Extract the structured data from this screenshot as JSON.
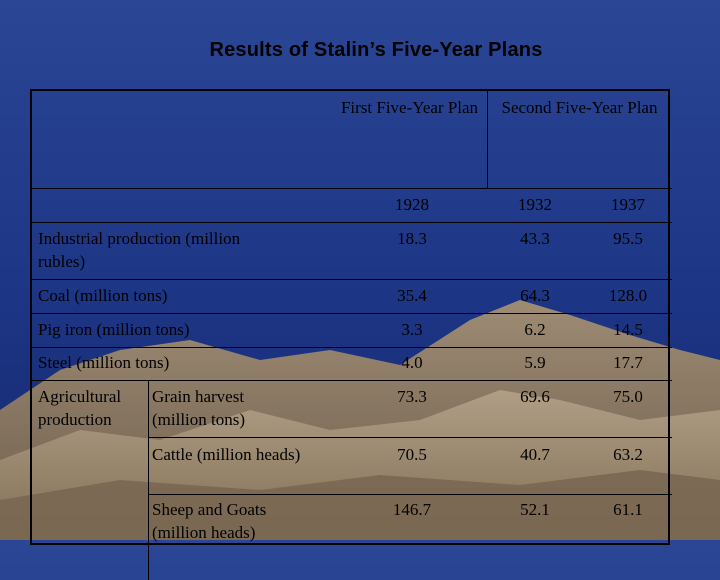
{
  "title": "Results of Stalin’s Five-Year Plans",
  "headers": {
    "first_plan": "First Five-Year Plan",
    "second_plan": "Second Five-Year Plan",
    "years": [
      "1928",
      "1932",
      "1937"
    ]
  },
  "rows": [
    {
      "label": "Industrial production (million rubles)",
      "values": [
        "18.3",
        "43.3",
        "95.5"
      ]
    },
    {
      "label": "Coal (million tons)",
      "values": [
        "35.4",
        "64.3",
        "128.0"
      ]
    },
    {
      "label": "Pig iron (million tons)",
      "values": [
        "3.3",
        "6.2",
        "14.5"
      ]
    },
    {
      "label": "Steel (million tons)",
      "values": [
        "4.0",
        "5.9",
        "17.7"
      ]
    }
  ],
  "agriculture": {
    "label": "Agricultural production",
    "rows": [
      {
        "label": "Grain harvest (million tons)",
        "values": [
          "73.3",
          "69.6",
          "75.0"
        ]
      },
      {
        "label": "Cattle (million heads)",
        "values": [
          "70.5",
          "40.7",
          "63.2"
        ]
      },
      {
        "label": "Sheep and Goats (million heads)",
        "values": [
          "146.7",
          "52.1",
          "61.1"
        ]
      }
    ]
  },
  "colors": {
    "background": "#1d3585",
    "mountains": "#8c7a64",
    "text": "#000000"
  }
}
